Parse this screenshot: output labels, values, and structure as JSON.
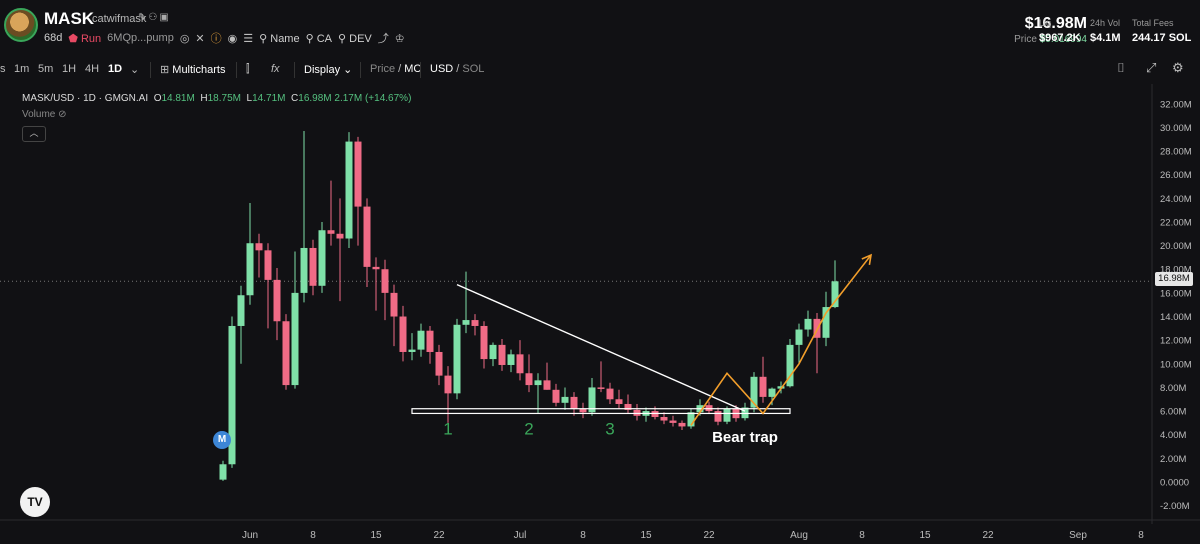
{
  "header": {
    "symbol": "MASK",
    "name": "catwifmask",
    "age": "68d",
    "run_label": "Run",
    "address": "6MQp...pump",
    "links": {
      "name": "Name",
      "ca": "CA",
      "dev": "DEV"
    },
    "price_mc": "$16.98M",
    "price_label": "Price",
    "price_value": "$0.016994",
    "liq_label": "Liq",
    "liq_value": "$967.2K",
    "vol_label": "24h Vol",
    "vol_value": "$4.1M",
    "fees_label": "Total Fees",
    "fees_value": "244.17 SOL"
  },
  "toolbar": {
    "timeframes": [
      "s",
      "1m",
      "5m",
      "1H",
      "4H",
      "1D"
    ],
    "selected": "1D",
    "multicharts": "Multicharts",
    "display": "Display",
    "price": "Price",
    "mc": "MC",
    "usd": "USD",
    "sol": "SOL"
  },
  "legend": {
    "symbol": "MASK/USD · 1D · GMGN.AI",
    "o_label": "O",
    "o": "14.81M",
    "h_label": "H",
    "h": "18.75M",
    "l_label": "L",
    "l": "14.71M",
    "c_label": "C",
    "c": "16.98M",
    "change": "2.17M (+14.67%)",
    "volume": "Volume"
  },
  "badges": {
    "m": "M",
    "tv": "TV"
  },
  "chart_data": {
    "type": "candlestick",
    "title": "MASK/USD · 1D · GMGN.AI",
    "units": "market cap (USD)",
    "ylim": [
      -2,
      32
    ],
    "y_ticks": [
      "32.00M",
      "30.00M",
      "28.00M",
      "26.00M",
      "24.00M",
      "22.00M",
      "20.00M",
      "18.00M",
      "16.00M",
      "14.00M",
      "12.00M",
      "10.00M",
      "8.00M",
      "6.00M",
      "4.00M",
      "2.00M",
      "0.0000",
      "-2.00M"
    ],
    "x_ticks": [
      {
        "label": "Jun",
        "day": 0
      },
      {
        "label": "8",
        "day": 7
      },
      {
        "label": "15",
        "day": 14
      },
      {
        "label": "22",
        "day": 21
      },
      {
        "label": "Jul",
        "day": 30
      },
      {
        "label": "8",
        "day": 37
      },
      {
        "label": "15",
        "day": 44
      },
      {
        "label": "22",
        "day": 51
      },
      {
        "label": "Aug",
        "day": 61
      },
      {
        "label": "8",
        "day": 68
      },
      {
        "label": "15",
        "day": 75
      },
      {
        "label": "22",
        "day": 82
      },
      {
        "label": "Sep",
        "day": 92
      },
      {
        "label": "8",
        "day": 99
      }
    ],
    "last_price": "16.98M",
    "last_value": 16.98,
    "candles": [
      {
        "day": -3,
        "o": 0.2,
        "h": 1.8,
        "l": 0.1,
        "c": 1.5
      },
      {
        "day": -2,
        "o": 1.5,
        "h": 14.0,
        "l": 1.2,
        "c": 13.2
      },
      {
        "day": -1,
        "o": 13.2,
        "h": 16.6,
        "l": 10.0,
        "c": 15.8
      },
      {
        "day": 0,
        "o": 15.8,
        "h": 23.6,
        "l": 15.0,
        "c": 20.2
      },
      {
        "day": 1,
        "o": 20.2,
        "h": 21.0,
        "l": 17.3,
        "c": 19.6
      },
      {
        "day": 2,
        "o": 19.6,
        "h": 20.2,
        "l": 13.0,
        "c": 17.1
      },
      {
        "day": 3,
        "o": 17.1,
        "h": 18.1,
        "l": 12.0,
        "c": 13.6
      },
      {
        "day": 4,
        "o": 13.6,
        "h": 14.2,
        "l": 7.8,
        "c": 8.2
      },
      {
        "day": 5,
        "o": 8.2,
        "h": 19.5,
        "l": 7.9,
        "c": 16.0
      },
      {
        "day": 6,
        "o": 16.0,
        "h": 29.7,
        "l": 15.2,
        "c": 19.8
      },
      {
        "day": 7,
        "o": 19.8,
        "h": 20.5,
        "l": 15.8,
        "c": 16.6
      },
      {
        "day": 8,
        "o": 16.6,
        "h": 22.0,
        "l": 16.0,
        "c": 21.3
      },
      {
        "day": 9,
        "o": 21.3,
        "h": 25.5,
        "l": 20.0,
        "c": 21.0
      },
      {
        "day": 10,
        "o": 21.0,
        "h": 24.0,
        "l": 15.3,
        "c": 20.6
      },
      {
        "day": 11,
        "o": 20.6,
        "h": 29.6,
        "l": 19.8,
        "c": 28.8
      },
      {
        "day": 12,
        "o": 28.8,
        "h": 29.2,
        "l": 20.0,
        "c": 23.3
      },
      {
        "day": 13,
        "o": 23.3,
        "h": 24.0,
        "l": 16.5,
        "c": 18.2
      },
      {
        "day": 14,
        "o": 18.2,
        "h": 19.0,
        "l": 14.5,
        "c": 18.0
      },
      {
        "day": 15,
        "o": 18.0,
        "h": 18.8,
        "l": 13.7,
        "c": 16.0
      },
      {
        "day": 16,
        "o": 16.0,
        "h": 16.7,
        "l": 11.5,
        "c": 14.0
      },
      {
        "day": 17,
        "o": 14.0,
        "h": 14.9,
        "l": 10.2,
        "c": 11.0
      },
      {
        "day": 18,
        "o": 11.0,
        "h": 12.6,
        "l": 10.3,
        "c": 11.2
      },
      {
        "day": 19,
        "o": 11.2,
        "h": 13.4,
        "l": 10.6,
        "c": 12.8
      },
      {
        "day": 20,
        "o": 12.8,
        "h": 13.2,
        "l": 10.0,
        "c": 11.0
      },
      {
        "day": 21,
        "o": 11.0,
        "h": 11.6,
        "l": 8.2,
        "c": 9.0
      },
      {
        "day": 22,
        "o": 9.0,
        "h": 9.8,
        "l": 5.0,
        "c": 7.5
      },
      {
        "day": 23,
        "o": 7.5,
        "h": 13.8,
        "l": 7.0,
        "c": 13.3
      },
      {
        "day": 24,
        "o": 13.3,
        "h": 17.8,
        "l": 12.6,
        "c": 13.7
      },
      {
        "day": 25,
        "o": 13.7,
        "h": 14.2,
        "l": 12.4,
        "c": 13.2
      },
      {
        "day": 26,
        "o": 13.2,
        "h": 13.6,
        "l": 9.6,
        "c": 10.4
      },
      {
        "day": 27,
        "o": 10.4,
        "h": 11.8,
        "l": 9.8,
        "c": 11.6
      },
      {
        "day": 28,
        "o": 11.6,
        "h": 12.1,
        "l": 9.4,
        "c": 9.9
      },
      {
        "day": 29,
        "o": 9.9,
        "h": 11.2,
        "l": 9.3,
        "c": 10.8
      },
      {
        "day": 30,
        "o": 10.8,
        "h": 12.0,
        "l": 8.6,
        "c": 9.2
      },
      {
        "day": 31,
        "o": 9.2,
        "h": 10.8,
        "l": 7.6,
        "c": 8.2
      },
      {
        "day": 32,
        "o": 8.2,
        "h": 9.2,
        "l": 5.8,
        "c": 8.6
      },
      {
        "day": 33,
        "o": 8.6,
        "h": 10.1,
        "l": 7.8,
        "c": 7.8
      },
      {
        "day": 34,
        "o": 7.8,
        "h": 8.3,
        "l": 6.4,
        "c": 6.7
      },
      {
        "day": 35,
        "o": 6.7,
        "h": 8.0,
        "l": 6.1,
        "c": 7.2
      },
      {
        "day": 36,
        "o": 7.2,
        "h": 7.6,
        "l": 5.6,
        "c": 6.2
      },
      {
        "day": 37,
        "o": 6.2,
        "h": 6.7,
        "l": 5.4,
        "c": 5.9
      },
      {
        "day": 38,
        "o": 5.9,
        "h": 8.8,
        "l": 5.6,
        "c": 8.0
      },
      {
        "day": 39,
        "o": 8.0,
        "h": 10.2,
        "l": 7.6,
        "c": 7.9
      },
      {
        "day": 40,
        "o": 7.9,
        "h": 8.4,
        "l": 6.6,
        "c": 7.0
      },
      {
        "day": 41,
        "o": 7.0,
        "h": 7.8,
        "l": 6.2,
        "c": 6.6
      },
      {
        "day": 42,
        "o": 6.6,
        "h": 7.4,
        "l": 5.8,
        "c": 6.1
      },
      {
        "day": 43,
        "o": 6.1,
        "h": 6.6,
        "l": 5.2,
        "c": 5.6
      },
      {
        "day": 44,
        "o": 5.6,
        "h": 6.3,
        "l": 5.1,
        "c": 6.0
      },
      {
        "day": 45,
        "o": 6.0,
        "h": 6.4,
        "l": 5.3,
        "c": 5.5
      },
      {
        "day": 46,
        "o": 5.5,
        "h": 5.9,
        "l": 4.9,
        "c": 5.2
      },
      {
        "day": 47,
        "o": 5.2,
        "h": 5.6,
        "l": 4.7,
        "c": 5.0
      },
      {
        "day": 48,
        "o": 5.0,
        "h": 5.2,
        "l": 4.4,
        "c": 4.7
      },
      {
        "day": 49,
        "o": 4.7,
        "h": 6.2,
        "l": 4.5,
        "c": 5.9
      },
      {
        "day": 50,
        "o": 5.9,
        "h": 7.0,
        "l": 5.6,
        "c": 6.5
      },
      {
        "day": 51,
        "o": 6.5,
        "h": 6.8,
        "l": 5.8,
        "c": 6.0
      },
      {
        "day": 52,
        "o": 6.0,
        "h": 6.3,
        "l": 4.8,
        "c": 5.1
      },
      {
        "day": 53,
        "o": 5.1,
        "h": 6.4,
        "l": 4.9,
        "c": 6.2
      },
      {
        "day": 54,
        "o": 6.2,
        "h": 6.5,
        "l": 5.1,
        "c": 5.4
      },
      {
        "day": 55,
        "o": 5.4,
        "h": 6.7,
        "l": 5.2,
        "c": 6.3
      },
      {
        "day": 56,
        "o": 6.3,
        "h": 9.3,
        "l": 5.9,
        "c": 8.9
      },
      {
        "day": 57,
        "o": 8.9,
        "h": 10.6,
        "l": 6.7,
        "c": 7.2
      },
      {
        "day": 58,
        "o": 7.2,
        "h": 8.0,
        "l": 6.5,
        "c": 7.9
      },
      {
        "day": 59,
        "o": 7.9,
        "h": 8.5,
        "l": 7.5,
        "c": 8.1
      },
      {
        "day": 60,
        "o": 8.1,
        "h": 12.1,
        "l": 8.0,
        "c": 11.6
      },
      {
        "day": 61,
        "o": 11.6,
        "h": 13.4,
        "l": 10.0,
        "c": 12.9
      },
      {
        "day": 62,
        "o": 12.9,
        "h": 14.5,
        "l": 12.3,
        "c": 13.8
      },
      {
        "day": 63,
        "o": 13.8,
        "h": 14.3,
        "l": 9.2,
        "c": 12.2
      },
      {
        "day": 64,
        "o": 12.2,
        "h": 16.1,
        "l": 11.5,
        "c": 14.8
      },
      {
        "day": 65,
        "o": 14.8,
        "h": 18.75,
        "l": 14.71,
        "c": 16.98
      }
    ],
    "annotations": [
      {
        "type": "trendline",
        "color": "#ffffff",
        "from": {
          "day": 23,
          "v": 16.7
        },
        "to": {
          "day": 55,
          "v": 6.0
        }
      },
      {
        "type": "rectangle",
        "color": "#ffffff",
        "day_from": 18,
        "day_to": 60,
        "v_low": 5.8,
        "v_high": 6.2
      },
      {
        "type": "path",
        "color": "#f29e2b",
        "points": [
          {
            "day": 49,
            "v": 4.8
          },
          {
            "day": 53,
            "v": 9.2
          },
          {
            "day": 57,
            "v": 5.8
          },
          {
            "day": 61,
            "v": 10.0
          },
          {
            "day": 64,
            "v": 14.3
          },
          {
            "day": 69,
            "v": 19.2
          }
        ]
      },
      {
        "type": "text",
        "text": "1",
        "color": "#3aa65a",
        "day": 22,
        "v": 4.0
      },
      {
        "type": "text",
        "text": "2",
        "color": "#3aa65a",
        "day": 31,
        "v": 4.0
      },
      {
        "type": "text",
        "text": "3",
        "color": "#3aa65a",
        "day": 40,
        "v": 4.0
      },
      {
        "type": "text",
        "text": "Bear trap",
        "color": "#ffffff",
        "day": 55,
        "v": 3.4
      }
    ]
  }
}
